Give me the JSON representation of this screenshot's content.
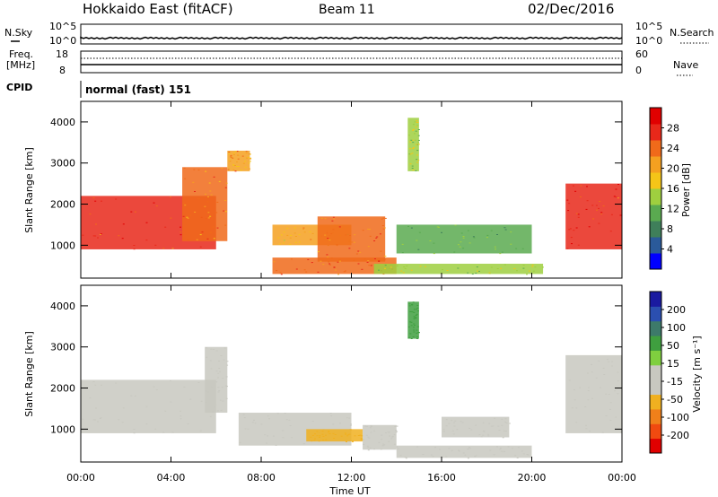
{
  "header": {
    "station": "Hokkaido East (fitACF)",
    "beam": "Beam 11",
    "date": "02/Dec/2016"
  },
  "sky_panel": {
    "left_label": "N.Sky",
    "right_label": "N.Search",
    "left_ticks": [
      "10^5",
      "10^0"
    ],
    "right_ticks": [
      "10^5",
      "10^0"
    ]
  },
  "freq_panel": {
    "left_label_1": "Freq.",
    "left_label_2": "[MHz]",
    "right_label": "Nave",
    "left_ticks": [
      "18",
      "8"
    ],
    "right_ticks": [
      "60",
      "0"
    ]
  },
  "cpid_panel": {
    "label": "CPID",
    "mode": "normal (fast) 151"
  },
  "x_axis": {
    "label": "Time UT",
    "ticks": [
      "00:00",
      "04:00",
      "08:00",
      "12:00",
      "16:00",
      "20:00",
      "00:00"
    ]
  },
  "power_panel": {
    "ylabel": "Slant Range [km]",
    "yticks": [
      "4000",
      "3000",
      "2000",
      "1000"
    ],
    "colorbar_label": "Power [dB]",
    "colorbar_ticks": [
      "28",
      "24",
      "20",
      "16",
      "12",
      "8",
      "4"
    ],
    "colors": [
      "#0000ff",
      "#2a5a9a",
      "#3f7f5a",
      "#5aaa50",
      "#9fcf3f",
      "#f5c518",
      "#f5a020",
      "#f06a1a",
      "#e8281a",
      "#e00000"
    ]
  },
  "velocity_panel": {
    "ylabel": "Slant Range [km]",
    "yticks": [
      "4000",
      "3000",
      "2000",
      "1000"
    ],
    "colorbar_label": "Velocity [m s⁻¹]",
    "colorbar_ticks": [
      "200",
      "100",
      "50",
      "15",
      "-15",
      "-50",
      "-100",
      "-200"
    ],
    "colors": [
      "#1a1aa0",
      "#2b4fb0",
      "#3d7a6a",
      "#3f9f3f",
      "#7fcf3f",
      "#c8c8c0",
      "#c8c8c0",
      "#f0b020",
      "#f0801a",
      "#f04a10",
      "#e00000"
    ]
  },
  "chart_data": [
    {
      "type": "heatmap",
      "title": "",
      "xlabel": "Time UT",
      "ylabel": "Slant Range [km]",
      "xlim": [
        "00:00",
        "24:00"
      ],
      "ylim": [
        200,
        4500
      ],
      "colorbar": {
        "label": "Power [dB]",
        "range": [
          0,
          32
        ]
      },
      "regions": [
        {
          "time": [
            "00:00",
            "06:00"
          ],
          "range_km": [
            900,
            2200
          ],
          "value": 28
        },
        {
          "time": [
            "04:30",
            "06:30"
          ],
          "range_km": [
            1100,
            2900
          ],
          "value": 24
        },
        {
          "time": [
            "06:30",
            "07:30"
          ],
          "range_km": [
            2800,
            3300
          ],
          "value": 22
        },
        {
          "time": [
            "08:30",
            "12:00"
          ],
          "range_km": [
            1000,
            1500
          ],
          "value": 20
        },
        {
          "time": [
            "10:30",
            "13:30"
          ],
          "range_km": [
            600,
            1700
          ],
          "value": 24
        },
        {
          "time": [
            "08:30",
            "14:00"
          ],
          "range_km": [
            300,
            700
          ],
          "value": 26
        },
        {
          "time": [
            "13:00",
            "20:30"
          ],
          "range_km": [
            300,
            550
          ],
          "value": 14
        },
        {
          "time": [
            "14:00",
            "20:00"
          ],
          "range_km": [
            800,
            1500
          ],
          "value": 12
        },
        {
          "time": [
            "14:30",
            "15:00"
          ],
          "range_km": [
            2800,
            4100
          ],
          "value": 14
        },
        {
          "time": [
            "21:30",
            "24:00"
          ],
          "range_km": [
            900,
            2500
          ],
          "value": 28
        }
      ]
    },
    {
      "type": "heatmap",
      "title": "",
      "xlabel": "Time UT",
      "ylabel": "Slant Range [km]",
      "xlim": [
        "00:00",
        "24:00"
      ],
      "ylim": [
        200,
        4500
      ],
      "colorbar": {
        "label": "Velocity [m s⁻¹]",
        "range": [
          -250,
          250
        ]
      },
      "regions": [
        {
          "time": [
            "00:00",
            "06:00"
          ],
          "range_km": [
            900,
            2200
          ],
          "value": 0
        },
        {
          "time": [
            "05:30",
            "06:30"
          ],
          "range_km": [
            1400,
            3000
          ],
          "value": 0
        },
        {
          "time": [
            "07:00",
            "12:00"
          ],
          "range_km": [
            600,
            1400
          ],
          "value": 0
        },
        {
          "time": [
            "10:00",
            "12:30"
          ],
          "range_km": [
            700,
            1000
          ],
          "value": -100
        },
        {
          "time": [
            "12:30",
            "14:00"
          ],
          "range_km": [
            500,
            1100
          ],
          "value": -50
        },
        {
          "time": [
            "14:00",
            "20:00"
          ],
          "range_km": [
            300,
            600
          ],
          "value": -40
        },
        {
          "time": [
            "16:00",
            "19:00"
          ],
          "range_km": [
            800,
            1300
          ],
          "value": -30
        },
        {
          "time": [
            "14:30",
            "15:00"
          ],
          "range_km": [
            3200,
            4100
          ],
          "value": 80
        },
        {
          "time": [
            "21:30",
            "24:00"
          ],
          "range_km": [
            900,
            2800
          ],
          "value": 0
        }
      ]
    }
  ]
}
